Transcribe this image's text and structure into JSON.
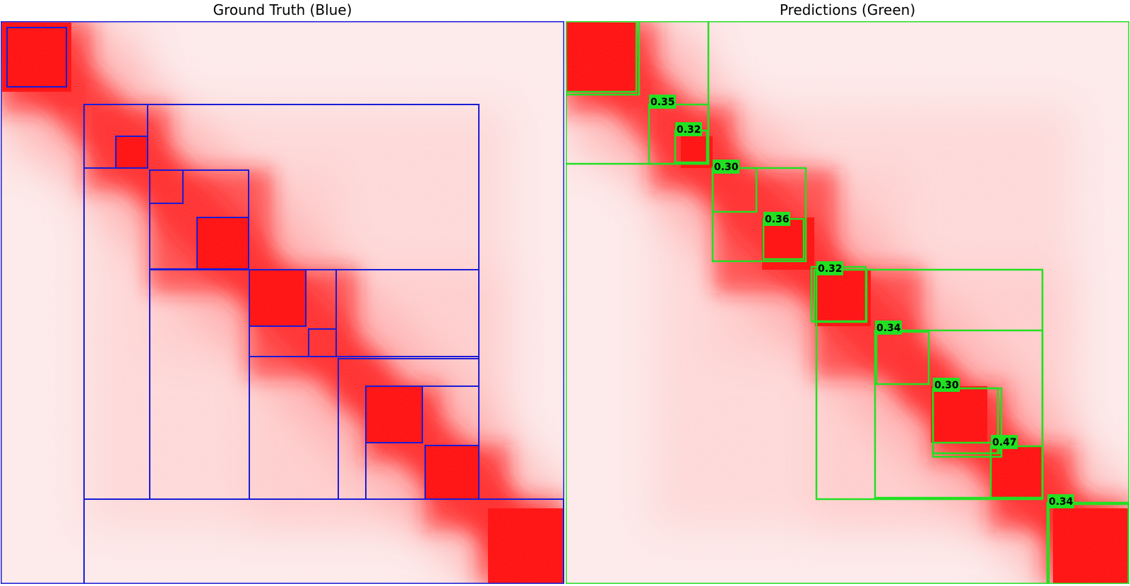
{
  "colors": {
    "ground_truth": "#1a1ad8",
    "prediction": "#22e022",
    "heat": "#ff0000",
    "heat_bg": "#fde6e6"
  },
  "ground_truth_panel": {
    "title": "Ground Truth (Blue)"
  },
  "predictions_panel": {
    "title": "Predictions (Green)",
    "score_labels": [
      "0.35",
      "0.32",
      "0.30",
      "0.36",
      "0.32",
      "0.34",
      "0.30",
      "0.47",
      "0.34"
    ]
  }
}
